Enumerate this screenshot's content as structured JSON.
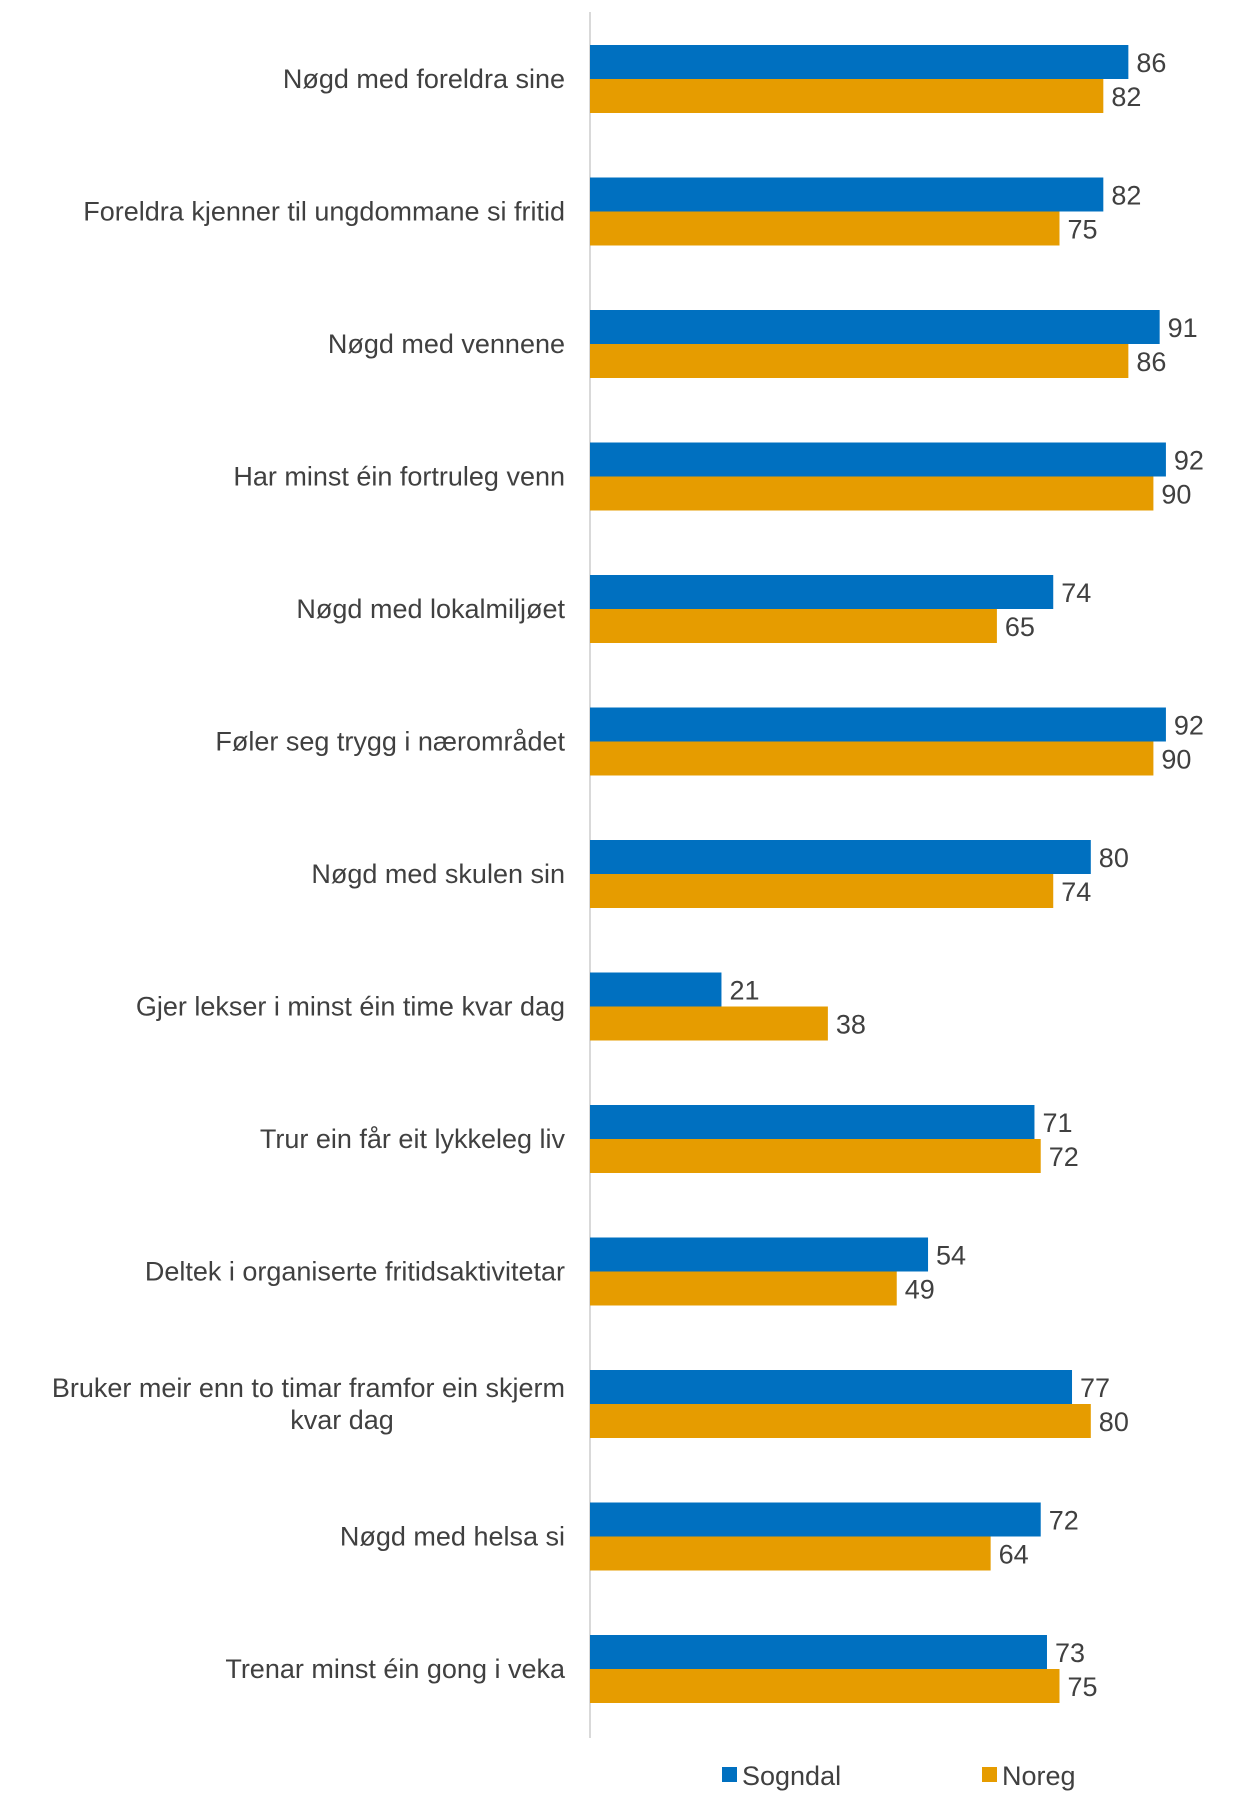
{
  "chart_data": {
    "type": "bar",
    "orientation": "horizontal",
    "categories": [
      [
        "Nøgd med foreldra sine"
      ],
      [
        "Foreldra kjenner til ungdommane si fritid"
      ],
      [
        "Nøgd med vennene"
      ],
      [
        "Har minst éin fortruleg venn"
      ],
      [
        "Nøgd med lokalmiljøet"
      ],
      [
        "Føler seg trygg i nærområdet"
      ],
      [
        "Nøgd med skulen sin"
      ],
      [
        "Gjer lekser i minst éin time kvar dag"
      ],
      [
        "Trur ein får eit lykkeleg liv"
      ],
      [
        "Deltek i organiserte fritidsaktivitetar"
      ],
      [
        "Bruker meir enn to timar framfor ein skjerm",
        "kvar dag"
      ],
      [
        "Nøgd med helsa si"
      ],
      [
        "Trenar minst éin gong i veka"
      ]
    ],
    "series": [
      {
        "name": "Sogndal",
        "color": "#0070c0",
        "values": [
          86,
          82,
          91,
          92,
          74,
          92,
          80,
          21,
          71,
          54,
          77,
          72,
          73
        ]
      },
      {
        "name": "Noreg",
        "color": "#e69c00",
        "values": [
          82,
          75,
          86,
          90,
          65,
          90,
          74,
          38,
          72,
          49,
          80,
          64,
          75
        ]
      }
    ],
    "xlim": [
      0,
      100
    ],
    "grid": false,
    "legend_position": "bottom"
  }
}
